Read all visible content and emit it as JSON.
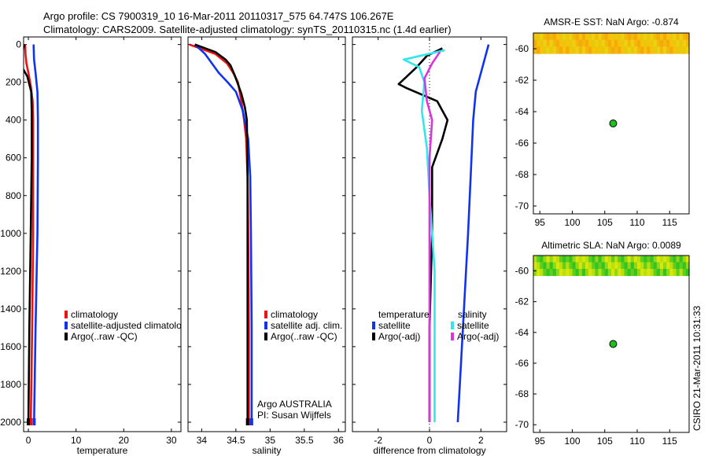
{
  "figure": {
    "title_line1": "Argo profile: CS 7900319_10 16-Mar-2011 20110317_575 64.747S 106.267E",
    "title_line2": "Climatology: CARS2009. Satellite-adjusted climatology: synTS_20110315.nc (1.4d earlier)",
    "credit": "CSIRO 21-Mar-2011 10:31:33",
    "colors": {
      "red": "#ee1111",
      "blue": "#1133ee",
      "black": "#000000",
      "cyan": "#33e6ee",
      "magenta": "#dd33dd",
      "marker": "#22bb22"
    }
  },
  "chart_data": [
    {
      "id": "temperature",
      "type": "line",
      "xlabel": "temperature",
      "ylabel": "",
      "xlim": [
        -1,
        32
      ],
      "ylim": [
        2050,
        -40
      ],
      "xticks": [
        0,
        10,
        20,
        30
      ],
      "xtick_labels": [
        "0",
        "10",
        "20",
        "30"
      ],
      "yticks": [
        0,
        200,
        400,
        600,
        800,
        1000,
        1200,
        1400,
        1600,
        1800,
        2000
      ],
      "ytick_labels": [
        "0",
        "200",
        "400",
        "600",
        "800",
        "1000",
        "1200",
        "1400",
        "1600",
        "1800",
        "2000"
      ],
      "legend": [
        {
          "label": "climatology",
          "color": "red"
        },
        {
          "label": "satellite-adjusted climatolo",
          "color": "blue"
        },
        {
          "label": "Argo(..raw -QC)",
          "color": "black"
        }
      ],
      "series": [
        {
          "name": "climatology",
          "color": "red",
          "points": [
            [
              -0.7,
              0
            ],
            [
              -0.6,
              50
            ],
            [
              -0.4,
              100
            ],
            [
              0.0,
              150
            ],
            [
              0.5,
              220
            ],
            [
              0.9,
              300
            ],
            [
              1.0,
              400
            ],
            [
              1.0,
              600
            ],
            [
              1.0,
              1000
            ],
            [
              0.8,
              1500
            ],
            [
              0.5,
              2000
            ]
          ]
        },
        {
          "name": "satellite-adjusted climatology",
          "color": "blue",
          "points": [
            [
              1.1,
              0
            ],
            [
              1.2,
              80
            ],
            [
              1.5,
              150
            ],
            [
              1.9,
              250
            ],
            [
              2.0,
              400
            ],
            [
              2.0,
              600
            ],
            [
              1.9,
              1000
            ],
            [
              1.5,
              1500
            ],
            [
              1.2,
              2000
            ]
          ]
        },
        {
          "name": "Argo(..raw -QC)",
          "color": "black",
          "points": [
            [
              -0.8,
              0
            ],
            [
              -1.2,
              30
            ],
            [
              -1.5,
              60
            ],
            [
              -1.8,
              100
            ],
            [
              -1.1,
              130
            ],
            [
              -0.2,
              170
            ],
            [
              0.6,
              250
            ],
            [
              0.7,
              350
            ],
            [
              0.7,
              600
            ],
            [
              0.5,
              1000
            ],
            [
              0.2,
              1500
            ],
            [
              0.0,
              2000
            ]
          ]
        }
      ]
    },
    {
      "id": "salinity",
      "type": "line",
      "xlabel": "salinity",
      "ylabel": "",
      "xlim": [
        33.8,
        36.1
      ],
      "ylim": [
        2050,
        -40
      ],
      "xticks": [
        34,
        34.5,
        35,
        35.5,
        36
      ],
      "xtick_labels": [
        "34",
        "34.5",
        "35",
        "35.5",
        "36"
      ],
      "legend": [
        {
          "label": "climatology",
          "color": "red"
        },
        {
          "label": "satellite adj. clim.",
          "color": "blue"
        },
        {
          "label": "Argo(..raw -QC)",
          "color": "black"
        }
      ],
      "annotation": [
        "Argo AUSTRALIA",
        "PI: Susan Wijffels"
      ],
      "series": [
        {
          "name": "climatology",
          "color": "red",
          "points": [
            [
              33.82,
              0
            ],
            [
              34.2,
              50
            ],
            [
              34.37,
              100
            ],
            [
              34.46,
              150
            ],
            [
              34.53,
              200
            ],
            [
              34.58,
              300
            ],
            [
              34.62,
              400
            ],
            [
              34.65,
              500
            ],
            [
              34.67,
              700
            ],
            [
              34.68,
              1000
            ],
            [
              34.69,
              1500
            ],
            [
              34.69,
              2000
            ]
          ]
        },
        {
          "name": "satellite adj. clim.",
          "color": "blue",
          "points": [
            [
              33.9,
              0
            ],
            [
              34.05,
              50
            ],
            [
              34.15,
              100
            ],
            [
              34.25,
              150
            ],
            [
              34.38,
              200
            ],
            [
              34.5,
              250
            ],
            [
              34.6,
              350
            ],
            [
              34.68,
              500
            ],
            [
              34.71,
              700
            ],
            [
              34.72,
              1000
            ],
            [
              34.73,
              1500
            ],
            [
              34.73,
              2000
            ]
          ]
        },
        {
          "name": "Argo(..raw -QC)",
          "color": "black",
          "points": [
            [
              33.9,
              0
            ],
            [
              34.2,
              40
            ],
            [
              34.35,
              80
            ],
            [
              34.42,
              110
            ],
            [
              34.48,
              160
            ],
            [
              34.52,
              200
            ],
            [
              34.58,
              260
            ],
            [
              34.63,
              330
            ],
            [
              34.66,
              400
            ],
            [
              34.67,
              700
            ],
            [
              34.67,
              1000
            ],
            [
              34.67,
              1500
            ],
            [
              34.67,
              2000
            ]
          ]
        }
      ]
    },
    {
      "id": "difference",
      "type": "line",
      "xlabel": "difference from climatology",
      "ylabel": "",
      "xlim": [
        -3,
        3
      ],
      "ylim": [
        2050,
        -40
      ],
      "xticks": [
        -2,
        0,
        2
      ],
      "xtick_labels": [
        "-2",
        "0",
        "2"
      ],
      "legend_left_title": "temperature",
      "legend_right_title": "salinity",
      "legend": [
        {
          "label": "satellite",
          "color": "blue",
          "group": "left"
        },
        {
          "label": "Argo(-adj)",
          "color": "black",
          "group": "left"
        },
        {
          "label": "satellite",
          "color": "cyan",
          "group": "right"
        },
        {
          "label": "Argo(-adj)",
          "color": "magenta",
          "group": "right"
        }
      ],
      "series": [
        {
          "name": "temperature satellite",
          "color": "blue",
          "points": [
            [
              2.3,
              0
            ],
            [
              2.1,
              100
            ],
            [
              1.8,
              250
            ],
            [
              1.7,
              400
            ],
            [
              1.6,
              700
            ],
            [
              1.5,
              1000
            ],
            [
              1.3,
              1500
            ],
            [
              1.1,
              2000
            ]
          ]
        },
        {
          "name": "temperature Argo(-adj)",
          "color": "black",
          "points": [
            [
              0.5,
              20
            ],
            [
              -0.1,
              60
            ],
            [
              -0.5,
              120
            ],
            [
              -1.2,
              210
            ],
            [
              -0.9,
              230
            ],
            [
              0.3,
              300
            ],
            [
              0.7,
              400
            ],
            [
              0.5,
              500
            ],
            [
              0.1,
              650
            ],
            [
              0.1,
              1000
            ],
            [
              0.0,
              1500
            ],
            [
              0.0,
              2000
            ]
          ]
        },
        {
          "name": "salinity satellite",
          "color": "cyan",
          "points": [
            [
              0.6,
              30
            ],
            [
              -1.0,
              80
            ],
            [
              -0.4,
              120
            ],
            [
              -0.2,
              200
            ],
            [
              -0.3,
              350
            ],
            [
              -0.1,
              550
            ],
            [
              0.0,
              800
            ],
            [
              0.2,
              1200
            ],
            [
              0.2,
              1600
            ],
            [
              0.2,
              2000
            ]
          ]
        },
        {
          "name": "salinity Argo(-adj)",
          "color": "magenta",
          "points": [
            [
              0.4,
              40
            ],
            [
              0.1,
              100
            ],
            [
              -0.2,
              180
            ],
            [
              -0.1,
              300
            ],
            [
              0.1,
              400
            ],
            [
              0.0,
              600
            ],
            [
              0.0,
              1000
            ],
            [
              0.0,
              1500
            ],
            [
              0.0,
              2000
            ]
          ]
        }
      ]
    },
    {
      "id": "sst_map",
      "type": "heatmap",
      "title": "AMSR-E SST: NaN Argo: -0.874",
      "xlim": [
        94,
        118
      ],
      "ylim": [
        -70.5,
        -59
      ],
      "xticks": [
        95,
        100,
        105,
        110,
        115
      ],
      "xtick_labels": [
        "95",
        "100",
        "105",
        "110",
        "115"
      ],
      "yticks": [
        -60,
        -62,
        -64,
        -66,
        -68,
        -70
      ],
      "ytick_labels": [
        "-60",
        "-62",
        "-64",
        "-66",
        "-68",
        "-70"
      ],
      "field_lat_range": [
        -60.3,
        -59
      ],
      "field_colors": [
        "#f7c308",
        "#f2b80a",
        "#e8c70c",
        "#f5a90a",
        "#efd011"
      ],
      "marker": {
        "lon": 106.3,
        "lat": -64.75
      }
    },
    {
      "id": "sla_map",
      "type": "heatmap",
      "title": "Altimetric SLA: NaN Argo: 0.0089",
      "xlim": [
        94,
        118
      ],
      "ylim": [
        -70.5,
        -59
      ],
      "xticks": [
        95,
        100,
        105,
        110,
        115
      ],
      "xtick_labels": [
        "95",
        "100",
        "105",
        "110",
        "115"
      ],
      "yticks": [
        -60,
        -62,
        -64,
        -66,
        -68,
        -70
      ],
      "ytick_labels": [
        "-60",
        "-62",
        "-64",
        "-66",
        "-68",
        "-70"
      ],
      "field_lat_range": [
        -60.3,
        -59
      ],
      "field_colors": [
        "#b8e00f",
        "#8fd816",
        "#5fce1c",
        "#d8e60a",
        "#36c31f"
      ],
      "marker": {
        "lon": 106.3,
        "lat": -64.75
      }
    }
  ]
}
